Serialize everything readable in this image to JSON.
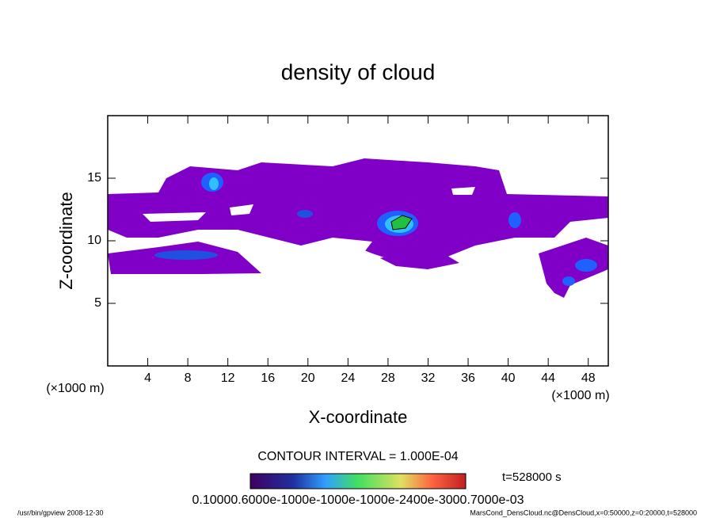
{
  "chart_data": {
    "type": "contour",
    "title": "density of cloud",
    "x_label": "X-coordinate",
    "y_label": "Z-coordinate",
    "x_unit_left": "(×1000 m)",
    "x_unit_right": "(×1000 m)",
    "xlim": [
      0,
      50
    ],
    "xticks": [
      4,
      8,
      12,
      16,
      20,
      24,
      28,
      32,
      36,
      40,
      44,
      48
    ],
    "ylim": [
      0,
      20
    ],
    "yticks": [
      5,
      10,
      15
    ],
    "contour_interval": "CONTOUR INTERVAL = 1.000E-04",
    "time_label": "t=528000 s",
    "colorbar_labels": "0.10000.6000e-1000e-1000e-1000e-2400e-3000.7000e-03",
    "footer_left": "/usr/bin/gpview   2008-12-30",
    "footer_right": "MarsCond_DensCloud.nc@DensCloud,x=0:50000,z=0:20000,t=528000"
  }
}
